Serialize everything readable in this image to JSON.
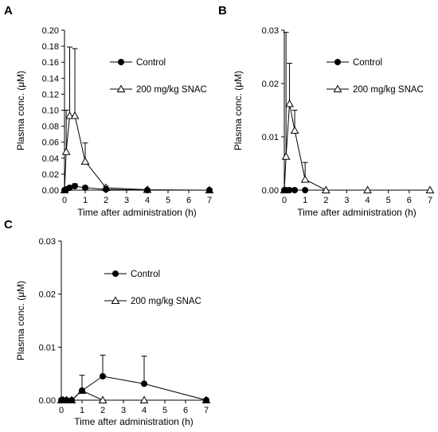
{
  "chart_data": [
    {
      "type": "line",
      "panel_label": "A",
      "xlabel": "Time after administration (h)",
      "ylabel": "Plasma conc. (μM)",
      "xlim": [
        0,
        7
      ],
      "ylim": [
        0,
        0.2
      ],
      "xticks": [
        0,
        1,
        2,
        3,
        4,
        5,
        6,
        7
      ],
      "yticks": [
        "0.00",
        "0.02",
        "0.04",
        "0.06",
        "0.08",
        "0.10",
        "0.12",
        "0.14",
        "0.16",
        "0.18",
        "0.20"
      ],
      "legend": "top-right",
      "grid": false,
      "series": [
        {
          "name": "Control",
          "marker": "filled-circle",
          "x": [
            0,
            0.083,
            0.25,
            0.5,
            1,
            2,
            4,
            7
          ],
          "y": [
            0.0,
            0.001,
            0.003,
            0.005,
            0.003,
            0.001,
            0.0,
            0.0
          ],
          "error_upper": [
            0.0,
            0.001,
            0.002,
            0.003,
            0.002,
            0.001,
            0.0,
            0.0
          ]
        },
        {
          "name": "200 mg/kg SNAC",
          "marker": "open-triangle",
          "x": [
            0,
            0.083,
            0.25,
            0.5,
            1,
            2,
            4,
            7
          ],
          "y": [
            0.0,
            0.048,
            0.093,
            0.093,
            0.036,
            0.003,
            0.0005,
            0.0
          ],
          "error_upper": [
            0.0,
            0.052,
            0.086,
            0.084,
            0.023,
            0.002,
            0.0005,
            0.0
          ]
        }
      ]
    },
    {
      "type": "line",
      "panel_label": "B",
      "xlabel": "Time after administration (h)",
      "ylabel": "Plasma conc. (μM)",
      "xlim": [
        0,
        7
      ],
      "ylim": [
        0,
        0.03
      ],
      "xticks": [
        0,
        1,
        2,
        3,
        4,
        5,
        6,
        7
      ],
      "yticks": [
        "0.00",
        "0.01",
        "0.02",
        "0.03"
      ],
      "legend": "top-right",
      "grid": false,
      "series": [
        {
          "name": "Control",
          "marker": "filled-circle",
          "x": [
            0,
            0.083,
            0.25,
            0.5,
            1
          ],
          "y": [
            0.0,
            0.0,
            0.0,
            0.0,
            0.0
          ],
          "error_upper": [
            0.0,
            0.0,
            0.0,
            0.0,
            0.0
          ]
        },
        {
          "name": "200 mg/kg SNAC",
          "marker": "open-triangle",
          "x": [
            0,
            0.083,
            0.25,
            0.5,
            1,
            2,
            4,
            7
          ],
          "y": [
            0.0,
            0.0063,
            0.0162,
            0.0112,
            0.002,
            0.0,
            0.0,
            0.0
          ],
          "error_upper": [
            0.0,
            0.0233,
            0.0076,
            0.0038,
            0.0032,
            0.0,
            0.0,
            0.0
          ]
        }
      ]
    },
    {
      "type": "line",
      "panel_label": "C",
      "xlabel": "Time after administration (h)",
      "ylabel": "Plasma conc. (μM)",
      "xlim": [
        0,
        7
      ],
      "ylim": [
        0,
        0.03
      ],
      "xticks": [
        0,
        1,
        2,
        3,
        4,
        5,
        6,
        7
      ],
      "yticks": [
        "0.00",
        "0.01",
        "0.02",
        "0.03"
      ],
      "legend": "top-right",
      "grid": false,
      "series": [
        {
          "name": "Control",
          "marker": "filled-circle",
          "x": [
            0,
            0.083,
            0.25,
            0.5,
            1,
            2,
            4,
            7
          ],
          "y": [
            0.0,
            0.0,
            0.0,
            0.0,
            0.0018,
            0.0045,
            0.0031,
            0.0
          ],
          "error_upper": [
            0.0,
            0.0,
            0.0,
            0.0,
            0.0029,
            0.004,
            0.0052,
            0.0
          ]
        },
        {
          "name": "200 mg/kg SNAC",
          "marker": "open-triangle",
          "x": [
            0,
            0.083,
            0.25,
            0.5,
            1,
            2,
            4,
            7
          ],
          "y": [
            0.0,
            0.0,
            0.0,
            0.0,
            0.0018,
            0.0,
            0.0,
            0.0
          ],
          "error_upper": [
            0.0,
            0.0,
            0.0,
            0.0,
            0.0,
            0.0,
            0.0,
            0.0
          ]
        }
      ]
    }
  ]
}
